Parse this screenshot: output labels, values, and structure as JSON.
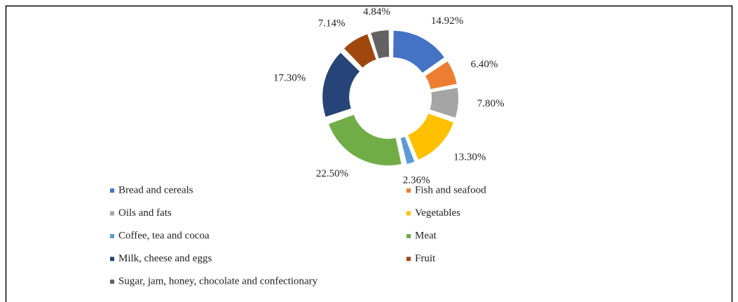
{
  "chart_data": {
    "type": "donut",
    "categories": [
      "Bread and cereals",
      "Fish and seafood",
      "Oils and fats",
      "Vegetables",
      "Coffee, tea and cocoa",
      "Meat",
      "Milk, cheese and eggs",
      "Fruit",
      "Sugar, jam, honey, chocolate and confectionary"
    ],
    "values": [
      14.92,
      6.4,
      7.8,
      13.3,
      2.36,
      22.5,
      17.3,
      7.14,
      4.84
    ],
    "value_labels": [
      "14.92%",
      "6.40%",
      "7.80%",
      "13.30%",
      "2.36%",
      "22.50%",
      "17.30%",
      "7.14%",
      "4.84%"
    ],
    "colors": [
      "#4472c4",
      "#ed7d31",
      "#a5a5a5",
      "#ffc000",
      "#5b9bd5",
      "#70ad47",
      "#264478",
      "#9e480e",
      "#636363"
    ],
    "legend": "bottom"
  }
}
